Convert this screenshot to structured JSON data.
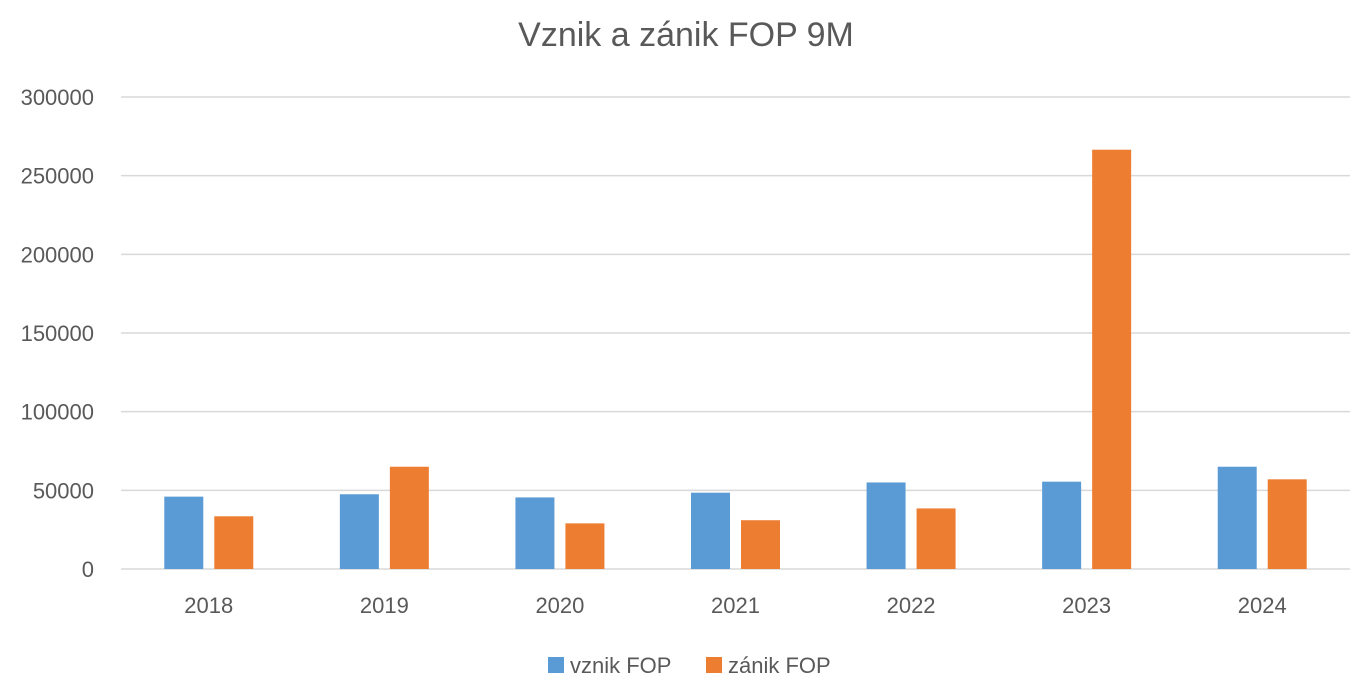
{
  "chart_data": {
    "type": "bar",
    "title": "Vznik a zánik FOP 9M",
    "xlabel": "",
    "ylabel": "",
    "categories": [
      "2018",
      "2019",
      "2020",
      "2021",
      "2022",
      "2023",
      "2024"
    ],
    "series": [
      {
        "name": "vznik FOP",
        "color": "#5b9bd5",
        "values": [
          46000,
          47500,
          45500,
          48500,
          55000,
          55500,
          65000
        ]
      },
      {
        "name": "zánik FOP",
        "color": "#ed7d31",
        "values": [
          33500,
          65000,
          29000,
          31000,
          38500,
          266500,
          57000
        ]
      }
    ],
    "ylim": [
      0,
      300000
    ],
    "yticks": [
      "0",
      "50000",
      "100000",
      "150000",
      "200000",
      "250000",
      "300000"
    ],
    "grid": true,
    "legend_position": "bottom"
  }
}
